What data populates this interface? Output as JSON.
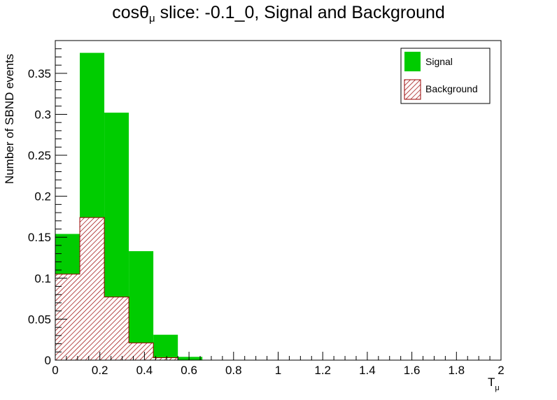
{
  "chart_data": {
    "type": "bar",
    "title_prefix": "cos",
    "title_theta": "θ",
    "title_sub": "μ",
    "title_rest": " slice: -0.1_0, Signal and Background",
    "xlabel": "T",
    "xlabel_sub": "μ",
    "ylabel": "Number of SBND events",
    "xlim": [
      0,
      2
    ],
    "ylim": [
      0,
      0.39
    ],
    "x_ticks": [
      "0",
      "0.2",
      "0.4",
      "0.6",
      "0.8",
      "1",
      "1.2",
      "1.4",
      "1.6",
      "1.8",
      "2"
    ],
    "y_ticks": [
      "0",
      "0.05",
      "0.1",
      "0.15",
      "0.2",
      "0.25",
      "0.3",
      "0.35"
    ],
    "bin_edges": [
      0,
      0.11,
      0.22,
      0.33,
      0.44,
      0.55,
      0.66
    ],
    "series": [
      {
        "name": "Signal",
        "style": "filled",
        "color": "#00cc00",
        "values": [
          0.154,
          0.375,
          0.302,
          0.133,
          0.031,
          0.004
        ]
      },
      {
        "name": "Background",
        "style": "hatched",
        "color": "#990000",
        "values": [
          0.105,
          0.174,
          0.077,
          0.021,
          0.003,
          0.0
        ]
      }
    ],
    "legend_position": "top-right",
    "grid": false
  }
}
